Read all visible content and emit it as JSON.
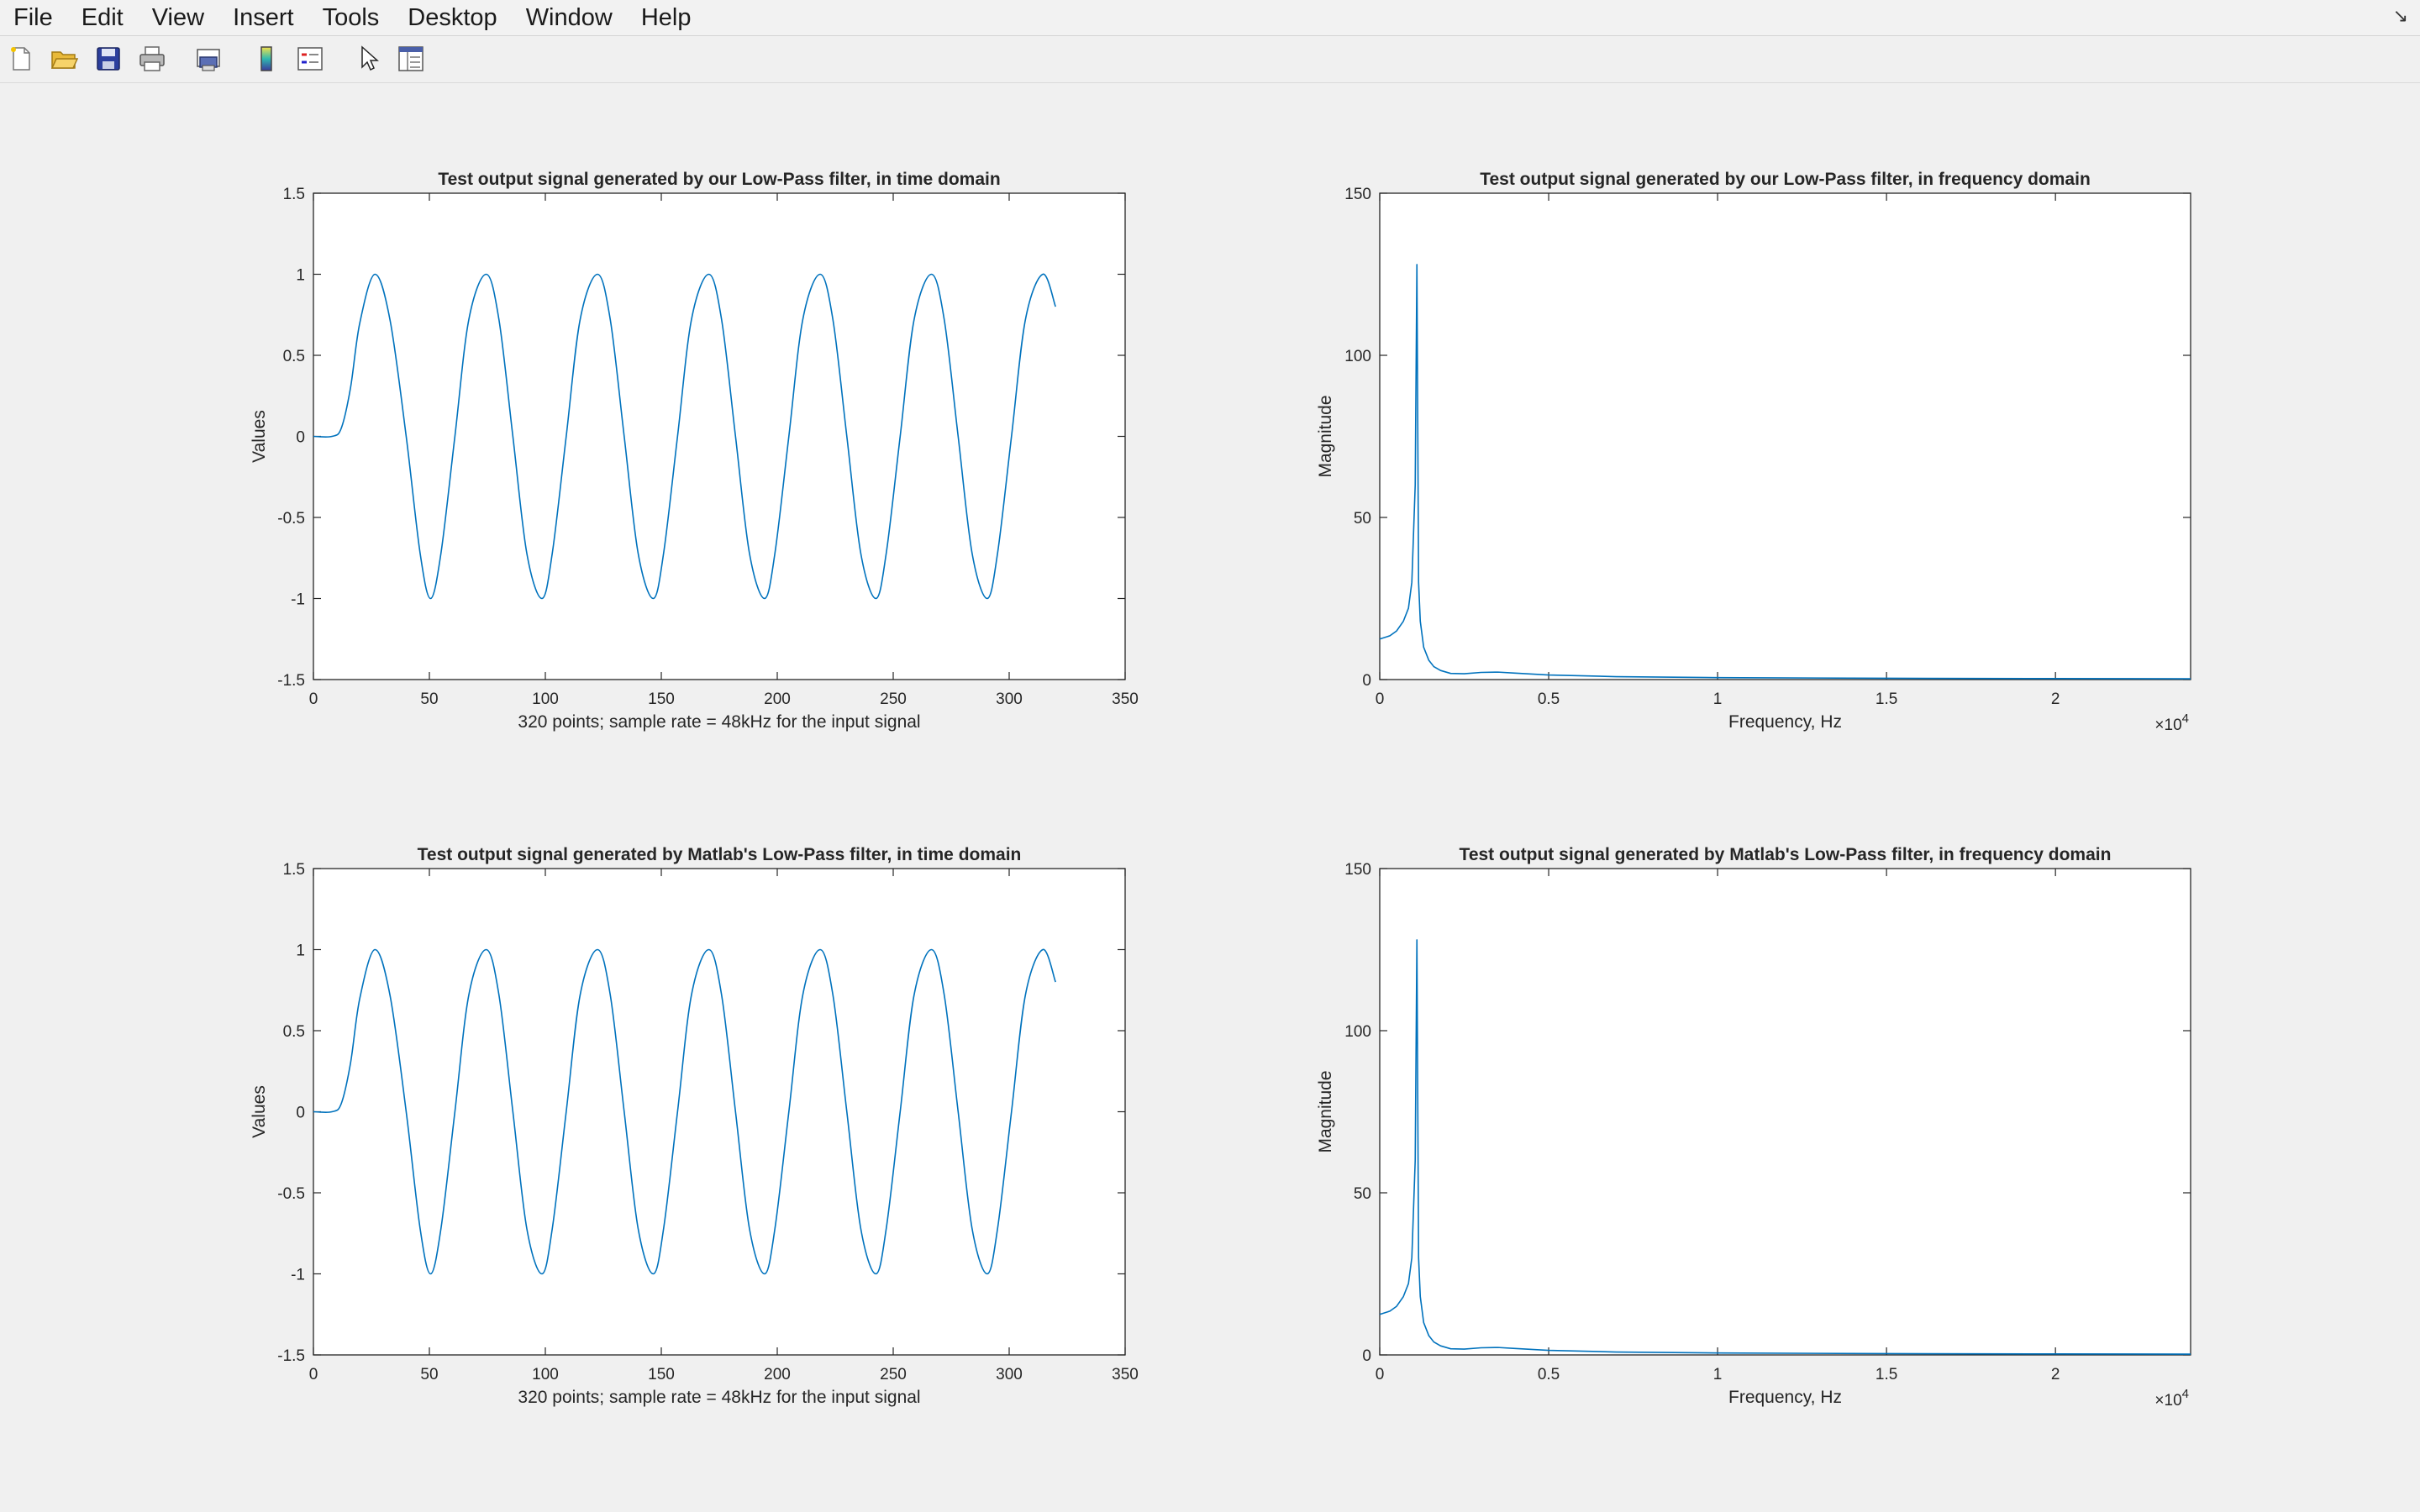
{
  "menubar": {
    "items": [
      "File",
      "Edit",
      "View",
      "Insert",
      "Tools",
      "Desktop",
      "Window",
      "Help"
    ]
  },
  "toolbar": {
    "icons": [
      "new-figure-icon",
      "open-file-icon",
      "save-icon",
      "print-icon",
      "print-preview-icon",
      "colorbar-icon",
      "legend-icon",
      "edit-plot-arrow-icon",
      "property-inspector-icon"
    ]
  },
  "colors": {
    "line": "#0072BD",
    "axes": "#262626",
    "background": "#f0f0f0",
    "plot_bg": "#ffffff"
  },
  "chart_data": [
    {
      "type": "line",
      "title": "Test output signal generated by our Low-Pass filter, in time domain",
      "xlabel": "320 points; sample rate = 48kHz for the input signal",
      "ylabel": "Values",
      "xlim": [
        0,
        350
      ],
      "ylim": [
        -1.5,
        1.5
      ],
      "xticks": [
        0,
        50,
        100,
        150,
        200,
        250,
        300,
        350
      ],
      "xtick_labels": [
        "0",
        "50",
        "100",
        "150",
        "200",
        "250",
        "300",
        "350"
      ],
      "yticks": [
        -1.5,
        -1,
        -0.5,
        0,
        0.5,
        1,
        1.5
      ],
      "ytick_labels": [
        "-1.5",
        "-1",
        "-0.5",
        "0",
        "0.5",
        "1",
        "1.5"
      ],
      "x_multiplier": "",
      "series": [
        {
          "x": [
            0,
            8,
            12,
            16,
            20,
            26.5,
            33,
            40,
            46,
            50.5,
            55,
            61,
            67,
            74.5,
            80,
            86,
            92,
            98.5,
            103,
            109,
            115,
            122.5,
            128,
            134,
            140,
            146.5,
            151,
            157,
            163,
            170.5,
            176,
            182,
            188,
            194.5,
            199,
            205,
            211,
            218.5,
            224,
            230,
            236,
            242.5,
            247,
            253,
            259,
            266.5,
            272,
            278,
            284,
            290.5,
            295,
            301,
            307,
            314.5,
            320
          ],
          "y": [
            0,
            0,
            0.05,
            0.3,
            0.7,
            1,
            0.72,
            0,
            -0.72,
            -1,
            -0.72,
            0,
            0.72,
            1,
            0.72,
            0,
            -0.72,
            -1,
            -0.72,
            0,
            0.72,
            1,
            0.72,
            0,
            -0.72,
            -1,
            -0.72,
            0,
            0.72,
            1,
            0.72,
            0,
            -0.72,
            -1,
            -0.72,
            0,
            0.72,
            1,
            0.72,
            0,
            -0.72,
            -1,
            -0.72,
            0,
            0.72,
            1,
            0.72,
            0,
            -0.72,
            -1,
            -0.72,
            0,
            0.72,
            1,
            0.8
          ]
        }
      ]
    },
    {
      "type": "line",
      "title": "Test output signal generated by our Low-Pass filter, in frequency domain",
      "xlabel": "Frequency, Hz",
      "ylabel": "Magnitude",
      "xlim": [
        0,
        24000
      ],
      "ylim": [
        0,
        150
      ],
      "xticks": [
        0,
        5000,
        10000,
        15000,
        20000
      ],
      "xtick_labels": [
        "0",
        "0.5",
        "1",
        "1.5",
        "2"
      ],
      "yticks": [
        0,
        50,
        100,
        150
      ],
      "ytick_labels": [
        "0",
        "50",
        "100",
        "150"
      ],
      "x_multiplier": "×10",
      "x_multiplier_exp": "4",
      "series": [
        {
          "x": [
            0,
            300,
            500,
            700,
            850,
            950,
            1050,
            1100,
            1150,
            1200,
            1300,
            1450,
            1600,
            1800,
            2100,
            2500,
            3000,
            3500,
            4000,
            5000,
            7000,
            10000,
            15000,
            20000,
            24000
          ],
          "y": [
            12.5,
            13.5,
            15,
            18,
            22,
            30,
            60,
            128,
            30,
            18,
            10,
            6,
            4,
            2.8,
            1.9,
            1.8,
            2.2,
            2.3,
            2.0,
            1.4,
            0.9,
            0.6,
            0.4,
            0.3,
            0.25
          ]
        }
      ]
    },
    {
      "type": "line",
      "title": "Test output signal generated by Matlab's Low-Pass filter, in time domain",
      "xlabel": "320 points; sample rate = 48kHz for the input signal",
      "ylabel": "Values",
      "xlim": [
        0,
        350
      ],
      "ylim": [
        -1.5,
        1.5
      ],
      "xticks": [
        0,
        50,
        100,
        150,
        200,
        250,
        300,
        350
      ],
      "xtick_labels": [
        "0",
        "50",
        "100",
        "150",
        "200",
        "250",
        "300",
        "350"
      ],
      "yticks": [
        -1.5,
        -1,
        -0.5,
        0,
        0.5,
        1,
        1.5
      ],
      "ytick_labels": [
        "-1.5",
        "-1",
        "-0.5",
        "0",
        "0.5",
        "1",
        "1.5"
      ],
      "x_multiplier": "",
      "series": [
        {
          "x": [
            0,
            8,
            12,
            16,
            20,
            26.5,
            33,
            40,
            46,
            50.5,
            55,
            61,
            67,
            74.5,
            80,
            86,
            92,
            98.5,
            103,
            109,
            115,
            122.5,
            128,
            134,
            140,
            146.5,
            151,
            157,
            163,
            170.5,
            176,
            182,
            188,
            194.5,
            199,
            205,
            211,
            218.5,
            224,
            230,
            236,
            242.5,
            247,
            253,
            259,
            266.5,
            272,
            278,
            284,
            290.5,
            295,
            301,
            307,
            314.5,
            320
          ],
          "y": [
            0,
            0,
            0.05,
            0.3,
            0.7,
            1,
            0.72,
            0,
            -0.72,
            -1,
            -0.72,
            0,
            0.72,
            1,
            0.72,
            0,
            -0.72,
            -1,
            -0.72,
            0,
            0.72,
            1,
            0.72,
            0,
            -0.72,
            -1,
            -0.72,
            0,
            0.72,
            1,
            0.72,
            0,
            -0.72,
            -1,
            -0.72,
            0,
            0.72,
            1,
            0.72,
            0,
            -0.72,
            -1,
            -0.72,
            0,
            0.72,
            1,
            0.72,
            0,
            -0.72,
            -1,
            -0.72,
            0,
            0.72,
            1,
            0.8
          ]
        }
      ]
    },
    {
      "type": "line",
      "title": "Test output signal generated by Matlab's Low-Pass filter, in frequency domain",
      "xlabel": "Frequency, Hz",
      "ylabel": "Magnitude",
      "xlim": [
        0,
        24000
      ],
      "ylim": [
        0,
        150
      ],
      "xticks": [
        0,
        5000,
        10000,
        15000,
        20000
      ],
      "xtick_labels": [
        "0",
        "0.5",
        "1",
        "1.5",
        "2"
      ],
      "yticks": [
        0,
        50,
        100,
        150
      ],
      "ytick_labels": [
        "0",
        "50",
        "100",
        "150"
      ],
      "x_multiplier": "×10",
      "x_multiplier_exp": "4",
      "series": [
        {
          "x": [
            0,
            300,
            500,
            700,
            850,
            950,
            1050,
            1100,
            1150,
            1200,
            1300,
            1450,
            1600,
            1800,
            2100,
            2500,
            3000,
            3500,
            4000,
            5000,
            7000,
            10000,
            15000,
            20000,
            24000
          ],
          "y": [
            12.5,
            13.5,
            15,
            18,
            22,
            30,
            60,
            128,
            30,
            18,
            10,
            6,
            4,
            2.8,
            1.9,
            1.8,
            2.2,
            2.3,
            2.0,
            1.4,
            0.9,
            0.6,
            0.4,
            0.3,
            0.25
          ]
        }
      ]
    }
  ]
}
